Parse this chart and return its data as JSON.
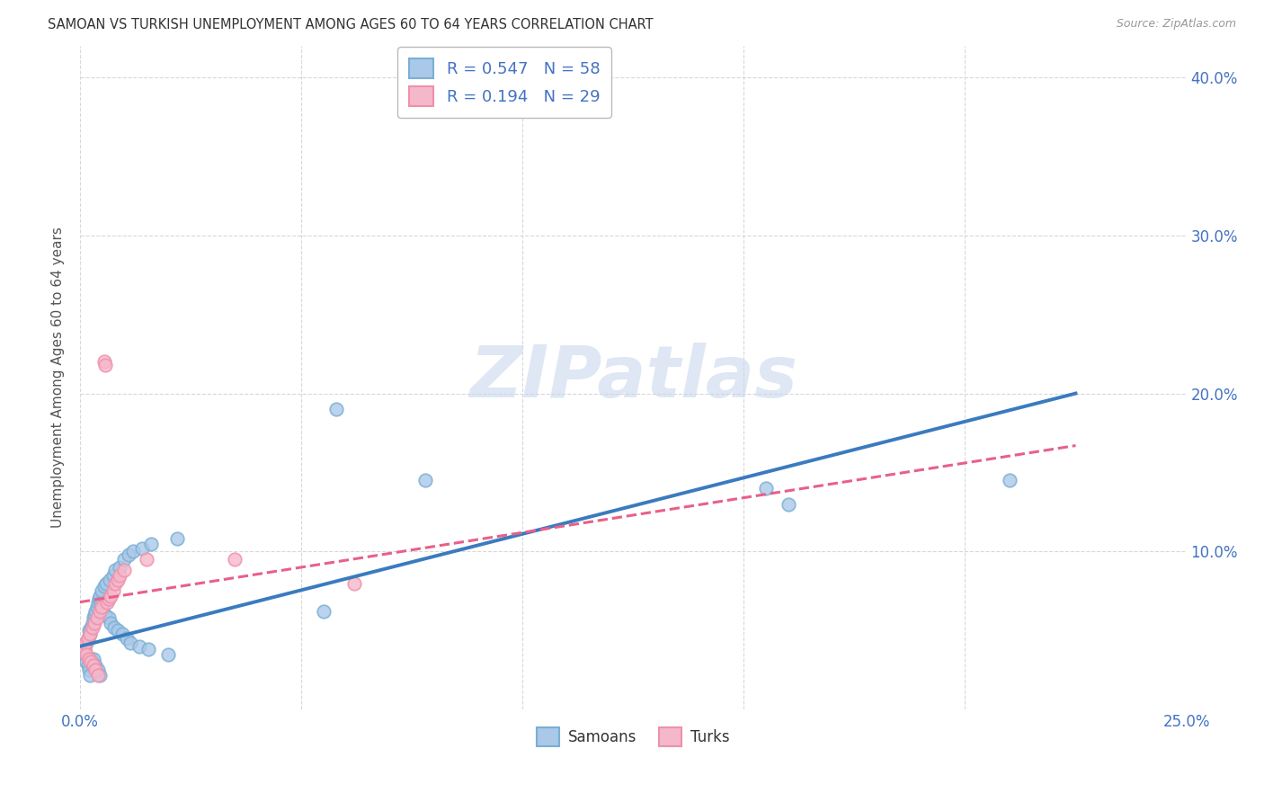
{
  "title": "SAMOAN VS TURKISH UNEMPLOYMENT AMONG AGES 60 TO 64 YEARS CORRELATION CHART",
  "source": "Source: ZipAtlas.com",
  "ylabel": "Unemployment Among Ages 60 to 64 years",
  "xlim": [
    0.0,
    0.25
  ],
  "ylim": [
    0.0,
    0.42
  ],
  "background_color": "#ffffff",
  "grid_color": "#d8d8d8",
  "blue_face": "#aac8e8",
  "blue_edge": "#7bafd4",
  "pink_face": "#f5b8cb",
  "pink_edge": "#f090aa",
  "blue_line": "#3a7bbf",
  "pink_line": "#e8608a",
  "text_color_blue": "#4472c4",
  "samoans_r": "0.547",
  "samoans_n": "58",
  "turks_r": "0.194",
  "turks_n": "29",
  "samoans_x": [
    0.0008,
    0.001,
    0.0012,
    0.0015,
    0.0015,
    0.0018,
    0.0018,
    0.002,
    0.002,
    0.0022,
    0.0022,
    0.0025,
    0.0025,
    0.0028,
    0.0028,
    0.003,
    0.003,
    0.0032,
    0.0035,
    0.0035,
    0.0038,
    0.004,
    0.004,
    0.0042,
    0.0045,
    0.0045,
    0.0048,
    0.005,
    0.0052,
    0.0055,
    0.0058,
    0.006,
    0.0065,
    0.0068,
    0.007,
    0.0075,
    0.0078,
    0.008,
    0.0085,
    0.009,
    0.0095,
    0.01,
    0.0105,
    0.011,
    0.0115,
    0.012,
    0.0135,
    0.014,
    0.0155,
    0.016,
    0.02,
    0.022,
    0.055,
    0.058,
    0.078,
    0.155,
    0.16,
    0.21
  ],
  "samoans_y": [
    0.04,
    0.038,
    0.035,
    0.042,
    0.03,
    0.045,
    0.028,
    0.05,
    0.025,
    0.048,
    0.022,
    0.052,
    0.032,
    0.055,
    0.028,
    0.058,
    0.032,
    0.06,
    0.062,
    0.028,
    0.065,
    0.068,
    0.025,
    0.07,
    0.072,
    0.022,
    0.068,
    0.075,
    0.065,
    0.078,
    0.06,
    0.08,
    0.058,
    0.082,
    0.055,
    0.085,
    0.052,
    0.088,
    0.05,
    0.09,
    0.048,
    0.095,
    0.045,
    0.098,
    0.042,
    0.1,
    0.04,
    0.102,
    0.038,
    0.105,
    0.035,
    0.108,
    0.062,
    0.19,
    0.145,
    0.14,
    0.13,
    0.145
  ],
  "turks_x": [
    0.0008,
    0.001,
    0.0012,
    0.0015,
    0.0018,
    0.002,
    0.0022,
    0.0025,
    0.0028,
    0.003,
    0.0032,
    0.0035,
    0.0038,
    0.004,
    0.0045,
    0.005,
    0.0055,
    0.0058,
    0.0062,
    0.0065,
    0.007,
    0.0075,
    0.008,
    0.0085,
    0.009,
    0.01,
    0.015,
    0.035,
    0.062
  ],
  "turks_y": [
    0.04,
    0.038,
    0.042,
    0.035,
    0.045,
    0.032,
    0.048,
    0.03,
    0.052,
    0.028,
    0.055,
    0.025,
    0.058,
    0.022,
    0.062,
    0.065,
    0.22,
    0.218,
    0.068,
    0.07,
    0.072,
    0.075,
    0.08,
    0.082,
    0.085,
    0.088,
    0.095,
    0.095,
    0.08
  ]
}
